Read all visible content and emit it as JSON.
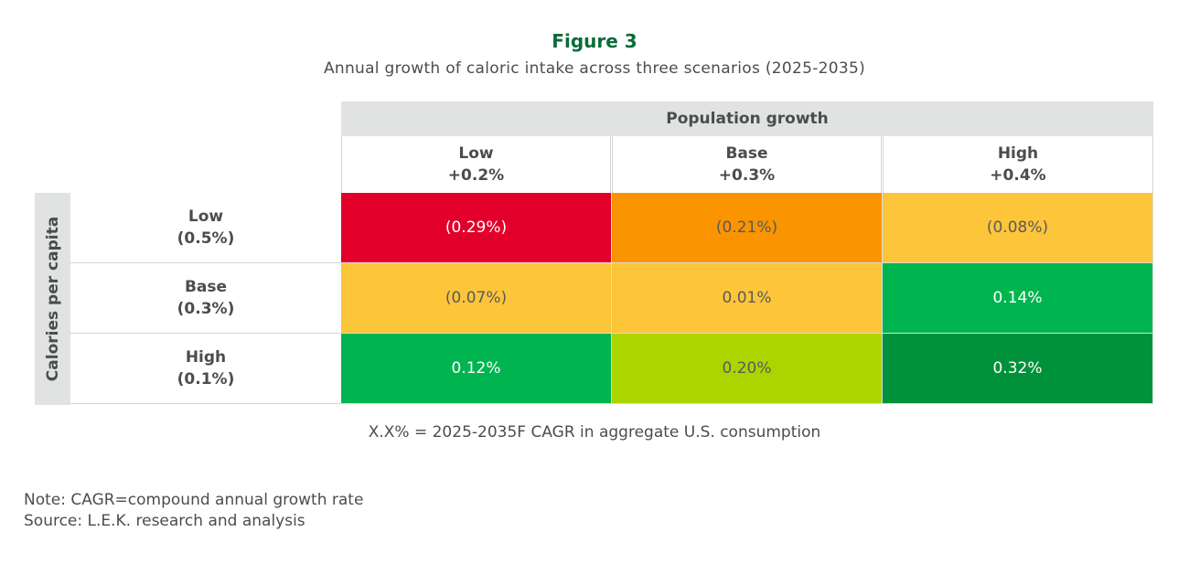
{
  "chart_data": {
    "type": "heatmap",
    "title": "Figure 3",
    "subtitle": "Annual growth of caloric intake across three scenarios (2025-2035)",
    "column_group_label": "Population growth",
    "row_group_label": "Calories per capita",
    "columns": [
      {
        "name": "Low",
        "value": "+0.2%"
      },
      {
        "name": "Base",
        "value": "+0.3%"
      },
      {
        "name": "High",
        "value": "+0.4%"
      }
    ],
    "rows": [
      {
        "name": "Low",
        "value": "(0.5%)"
      },
      {
        "name": "Base",
        "value": "(0.3%)"
      },
      {
        "name": "High",
        "value": "(0.1%)"
      }
    ],
    "values": [
      [
        -0.29,
        -0.21,
        -0.08
      ],
      [
        -0.07,
        0.01,
        0.14
      ],
      [
        0.12,
        0.2,
        0.32
      ]
    ],
    "labels": [
      [
        "(0.29%)",
        "(0.21%)",
        "(0.08%)"
      ],
      [
        "(0.07%)",
        "0.01%",
        "0.14%"
      ],
      [
        "0.12%",
        "0.20%",
        "0.32%"
      ]
    ],
    "colors": [
      [
        "#e2002a",
        "#fa9400",
        "#fdc53a"
      ],
      [
        "#fdc53a",
        "#fdc53a",
        "#00b550"
      ],
      [
        "#00b550",
        "#acd500",
        "#00923b"
      ]
    ],
    "text_colors": [
      [
        "#ffffff",
        "#5a5a5a",
        "#5a5a5a"
      ],
      [
        "#5a5a5a",
        "#5a5a5a",
        "#ffffff"
      ],
      [
        "#ffffff",
        "#5a5a5a",
        "#ffffff"
      ]
    ],
    "legend": "X.X% = 2025-2035F CAGR in aggregate U.S. consumption"
  },
  "notes": {
    "note": "Note: CAGR=compound annual growth rate",
    "source": "Source: L.E.K. research and analysis"
  }
}
